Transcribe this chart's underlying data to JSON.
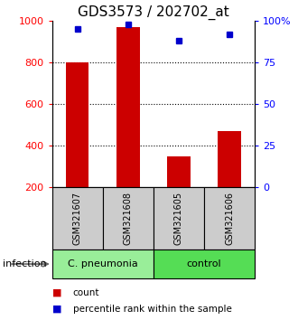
{
  "title": "GDS3573 / 202702_at",
  "samples": [
    "GSM321607",
    "GSM321608",
    "GSM321605",
    "GSM321606"
  ],
  "counts": [
    800,
    970,
    350,
    470
  ],
  "percentiles": [
    95,
    98,
    88,
    92
  ],
  "bar_color": "#cc0000",
  "dot_color": "#0000cc",
  "bar_bottom": 200,
  "ylim_left": [
    200,
    1000
  ],
  "ylim_right": [
    0,
    100
  ],
  "yticks_left": [
    200,
    400,
    600,
    800,
    1000
  ],
  "yticks_right": [
    0,
    25,
    50,
    75,
    100
  ],
  "ytick_labels_right": [
    "0",
    "25",
    "50",
    "75",
    "100%"
  ],
  "groups": [
    {
      "label": "C. pneumonia",
      "samples": [
        0,
        1
      ],
      "color": "#99ee99"
    },
    {
      "label": "control",
      "samples": [
        2,
        3
      ],
      "color": "#55dd55"
    }
  ],
  "group_label_prefix": "infection",
  "legend_items": [
    {
      "color": "#cc0000",
      "label": "count"
    },
    {
      "color": "#0000cc",
      "label": "percentile rank within the sample"
    }
  ],
  "sample_box_color": "#cccccc",
  "bar_width": 0.45,
  "title_fontsize": 11
}
